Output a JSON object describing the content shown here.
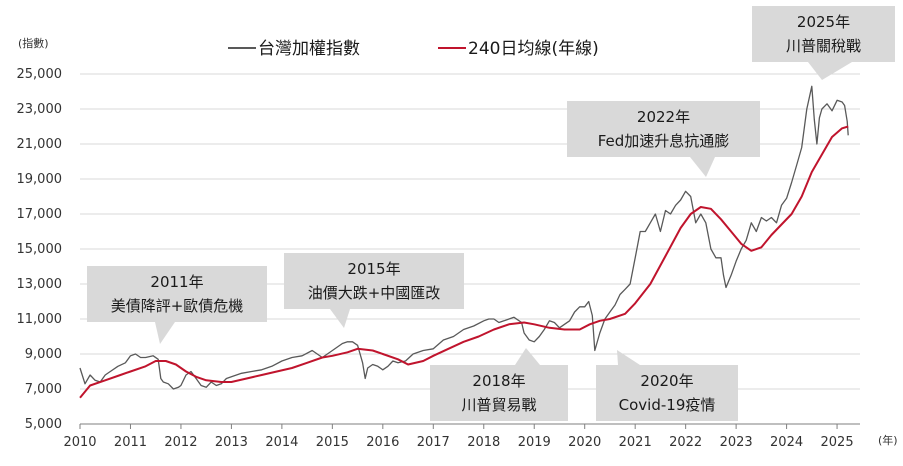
{
  "chart_data": {
    "type": "line",
    "title": "",
    "y_unit_label": "(指數)",
    "x_unit_label": "(年)",
    "ylim": [
      5000,
      25000
    ],
    "xlim": [
      2010,
      2025.3
    ],
    "y_ticks": [
      "5,000",
      "7,000",
      "9,000",
      "11,000",
      "13,000",
      "15,000",
      "17,000",
      "19,000",
      "21,000",
      "23,000",
      "25,000"
    ],
    "y_tick_values": [
      5000,
      7000,
      9000,
      11000,
      13000,
      15000,
      17000,
      19000,
      21000,
      23000,
      25000
    ],
    "x_ticks": [
      "2010",
      "2011",
      "2012",
      "2013",
      "2014",
      "2015",
      "2016",
      "2017",
      "2018",
      "2019",
      "2020",
      "2021",
      "2022",
      "2023",
      "2024",
      "2025"
    ],
    "x_tick_values": [
      2010,
      2011,
      2012,
      2013,
      2014,
      2015,
      2016,
      2017,
      2018,
      2019,
      2020,
      2021,
      2022,
      2023,
      2024,
      2025
    ],
    "grid": "horizontal",
    "legend_position": "top",
    "series": [
      {
        "name": "台灣加權指數",
        "color": "#595959",
        "x": [
          2010.0,
          2010.1,
          2010.2,
          2010.3,
          2010.4,
          2010.5,
          2010.6,
          2010.75,
          2010.9,
          2011.0,
          2011.1,
          2011.2,
          2011.3,
          2011.45,
          2011.55,
          2011.6,
          2011.65,
          2011.75,
          2011.85,
          2011.95,
          2012.0,
          2012.1,
          2012.2,
          2012.3,
          2012.4,
          2012.5,
          2012.6,
          2012.7,
          2012.8,
          2012.9,
          2013.0,
          2013.2,
          2013.4,
          2013.6,
          2013.8,
          2014.0,
          2014.2,
          2014.4,
          2014.6,
          2014.8,
          2015.0,
          2015.1,
          2015.2,
          2015.3,
          2015.4,
          2015.5,
          2015.6,
          2015.65,
          2015.7,
          2015.8,
          2015.9,
          2016.0,
          2016.1,
          2016.2,
          2016.3,
          2016.45,
          2016.6,
          2016.8,
          2017.0,
          2017.2,
          2017.4,
          2017.6,
          2017.8,
          2018.0,
          2018.1,
          2018.2,
          2018.3,
          2018.4,
          2018.5,
          2018.6,
          2018.75,
          2018.8,
          2018.9,
          2019.0,
          2019.1,
          2019.2,
          2019.3,
          2019.4,
          2019.5,
          2019.6,
          2019.7,
          2019.8,
          2019.9,
          2020.0,
          2020.08,
          2020.15,
          2020.2,
          2020.3,
          2020.4,
          2020.5,
          2020.6,
          2020.7,
          2020.8,
          2020.9,
          2021.0,
          2021.1,
          2021.2,
          2021.3,
          2021.4,
          2021.5,
          2021.6,
          2021.7,
          2021.8,
          2021.9,
          2022.0,
          2022.1,
          2022.2,
          2022.3,
          2022.4,
          2022.5,
          2022.6,
          2022.7,
          2022.75,
          2022.8,
          2022.9,
          2023.0,
          2023.1,
          2023.2,
          2023.3,
          2023.4,
          2023.5,
          2023.6,
          2023.7,
          2023.8,
          2023.9,
          2024.0,
          2024.1,
          2024.2,
          2024.3,
          2024.4,
          2024.5,
          2024.55,
          2024.6,
          2024.65,
          2024.7,
          2024.8,
          2024.9,
          2025.0,
          2025.1,
          2025.15,
          2025.2,
          2025.22
        ],
        "values": [
          8200,
          7300,
          7800,
          7500,
          7400,
          7800,
          8000,
          8300,
          8500,
          8900,
          9000,
          8800,
          8800,
          8900,
          8700,
          7600,
          7400,
          7300,
          7000,
          7100,
          7200,
          7800,
          8000,
          7600,
          7200,
          7100,
          7400,
          7200,
          7300,
          7600,
          7700,
          7900,
          8000,
          8100,
          8300,
          8600,
          8800,
          8900,
          9200,
          8800,
          9200,
          9400,
          9600,
          9700,
          9700,
          9500,
          8500,
          7600,
          8200,
          8400,
          8300,
          8100,
          8300,
          8600,
          8500,
          8600,
          9000,
          9200,
          9300,
          9800,
          10000,
          10400,
          10600,
          10900,
          11000,
          11000,
          10800,
          10900,
          11000,
          11100,
          10800,
          10200,
          9800,
          9700,
          10000,
          10400,
          10900,
          10800,
          10500,
          10700,
          10900,
          11400,
          11700,
          11700,
          12000,
          11200,
          9200,
          10200,
          11000,
          11400,
          11800,
          12400,
          12700,
          13000,
          14500,
          16000,
          16000,
          16500,
          17000,
          16000,
          17200,
          17000,
          17500,
          17800,
          18300,
          18000,
          16500,
          17000,
          16500,
          15000,
          14500,
          14500,
          13500,
          12800,
          13500,
          14300,
          15000,
          15500,
          16500,
          16000,
          16800,
          16600,
          16800,
          16500,
          17500,
          17900,
          18800,
          19800,
          20800,
          23000,
          24300,
          22400,
          21000,
          22500,
          23000,
          23300,
          22900,
          23500,
          23400,
          23200,
          22300,
          21500
        ]
      },
      {
        "name": "240日均線(年線)",
        "color": "#c0142d",
        "x": [
          2010.0,
          2010.2,
          2010.5,
          2010.8,
          2011.0,
          2011.3,
          2011.5,
          2011.7,
          2011.9,
          2012.1,
          2012.3,
          2012.5,
          2012.8,
          2013.0,
          2013.3,
          2013.6,
          2013.9,
          2014.2,
          2014.5,
          2014.8,
          2015.0,
          2015.3,
          2015.5,
          2015.8,
          2016.0,
          2016.3,
          2016.5,
          2016.8,
          2017.0,
          2017.3,
          2017.6,
          2017.9,
          2018.2,
          2018.5,
          2018.8,
          2019.0,
          2019.3,
          2019.6,
          2019.9,
          2020.1,
          2020.3,
          2020.5,
          2020.8,
          2021.0,
          2021.3,
          2021.6,
          2021.9,
          2022.1,
          2022.3,
          2022.5,
          2022.7,
          2022.9,
          2023.1,
          2023.3,
          2023.5,
          2023.7,
          2023.9,
          2024.1,
          2024.3,
          2024.5,
          2024.7,
          2024.9,
          2025.1,
          2025.22
        ],
        "values": [
          6500,
          7200,
          7500,
          7800,
          8000,
          8300,
          8600,
          8600,
          8400,
          8000,
          7700,
          7500,
          7400,
          7400,
          7600,
          7800,
          8000,
          8200,
          8500,
          8800,
          8900,
          9100,
          9300,
          9200,
          9000,
          8700,
          8400,
          8600,
          8900,
          9300,
          9700,
          10000,
          10400,
          10700,
          10800,
          10700,
          10500,
          10400,
          10400,
          10700,
          10900,
          11000,
          11300,
          11900,
          13000,
          14600,
          16200,
          17000,
          17400,
          17300,
          16700,
          16000,
          15300,
          14900,
          15100,
          15800,
          16400,
          17000,
          18000,
          19400,
          20400,
          21400,
          21900,
          22000
        ]
      }
    ],
    "annotations": [
      {
        "lines": [
          "2011年",
          "美債降評+歐債危機"
        ]
      },
      {
        "lines": [
          "2015年",
          "油價大跌+中國匯改"
        ]
      },
      {
        "lines": [
          "2018年",
          "川普貿易戰"
        ]
      },
      {
        "lines": [
          "2020年",
          "Covid-19疫情"
        ]
      },
      {
        "lines": [
          "2022年",
          "Fed加速升息抗通膨"
        ]
      },
      {
        "lines": [
          "2025年",
          "川普關稅戰"
        ]
      }
    ]
  }
}
